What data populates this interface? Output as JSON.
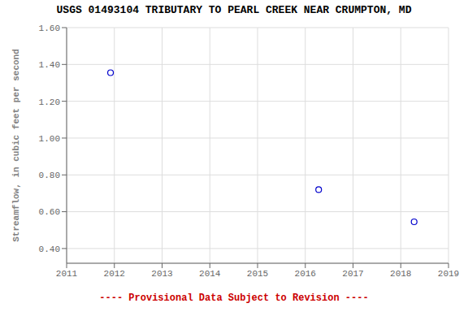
{
  "chart_data": {
    "type": "scatter",
    "title": "USGS 01493104 TRIBUTARY TO PEARL CREEK NEAR CRUMPTON, MD",
    "y_label": "Streamflow, in cubic feet per second",
    "x": [
      2011.92,
      2016.28,
      2018.28
    ],
    "values": [
      1.355,
      0.72,
      0.545
    ],
    "color": "#0000cc",
    "marker": "circle",
    "xlim": [
      2011,
      2019
    ],
    "ylim": [
      0.32,
      1.6
    ],
    "xticks": [
      2011,
      2012,
      2013,
      2014,
      2015,
      2016,
      2017,
      2018,
      2019
    ],
    "yticks": [
      {
        "value": 0.4,
        "label": "0.40"
      },
      {
        "value": 0.6,
        "label": "0.60"
      },
      {
        "value": 0.8,
        "label": "0.80"
      },
      {
        "value": 1.0,
        "label": "1.00"
      },
      {
        "value": 1.2,
        "label": "1.20"
      },
      {
        "value": 1.4,
        "label": "1.40"
      },
      {
        "value": 1.6,
        "label": "1.60"
      }
    ],
    "grid": true,
    "annotations": [
      {
        "text": "---- Provisional Data Subject to Revision ----",
        "color": "#cc0000"
      }
    ]
  }
}
